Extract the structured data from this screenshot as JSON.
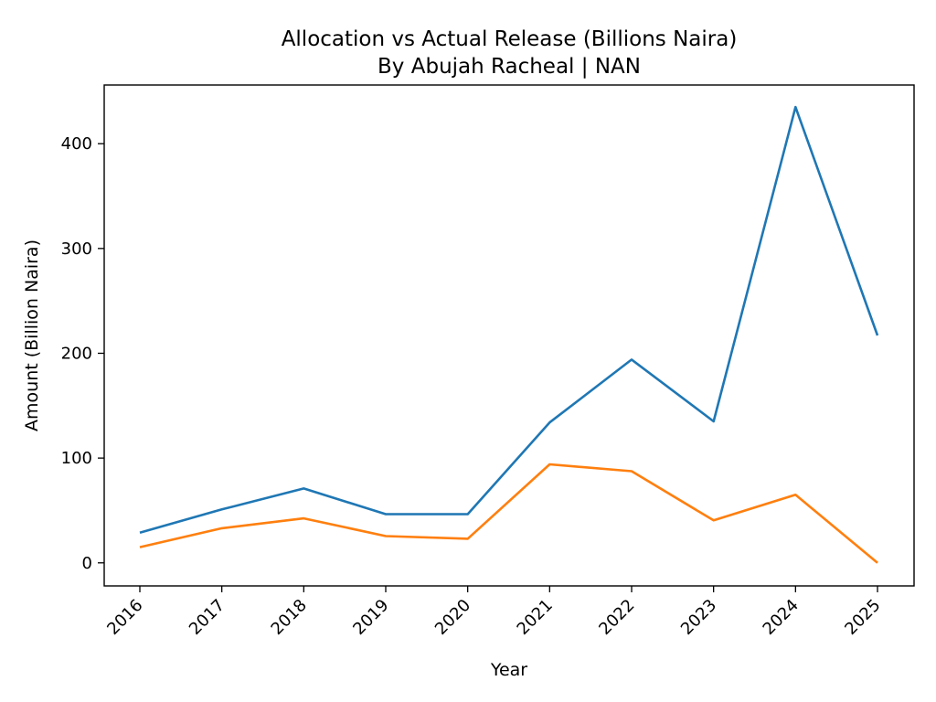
{
  "chart_data": {
    "type": "line",
    "title": "Allocation vs Actual Release (Billions Naira)",
    "subtitle": "By Abujah Racheal | NAN",
    "xlabel": "Year",
    "ylabel": "Amount (Billion Naira)",
    "x": [
      "2016",
      "2017",
      "2018",
      "2019",
      "2020",
      "2021",
      "2022",
      "2023",
      "2024",
      "2025"
    ],
    "ylim": [
      -22,
      456
    ],
    "yticks": [
      "0",
      "100",
      "200",
      "300",
      "400"
    ],
    "grid": false,
    "legend": "none",
    "series": [
      {
        "color": "#1f77b4",
        "values": [
          28.8,
          51,
          71,
          46.5,
          46.5,
          134,
          194,
          135,
          435,
          217
        ]
      },
      {
        "color": "#ff7f0e",
        "values": [
          15,
          33,
          42.5,
          25.5,
          23,
          94,
          87.5,
          40.5,
          65,
          0
        ]
      }
    ]
  }
}
